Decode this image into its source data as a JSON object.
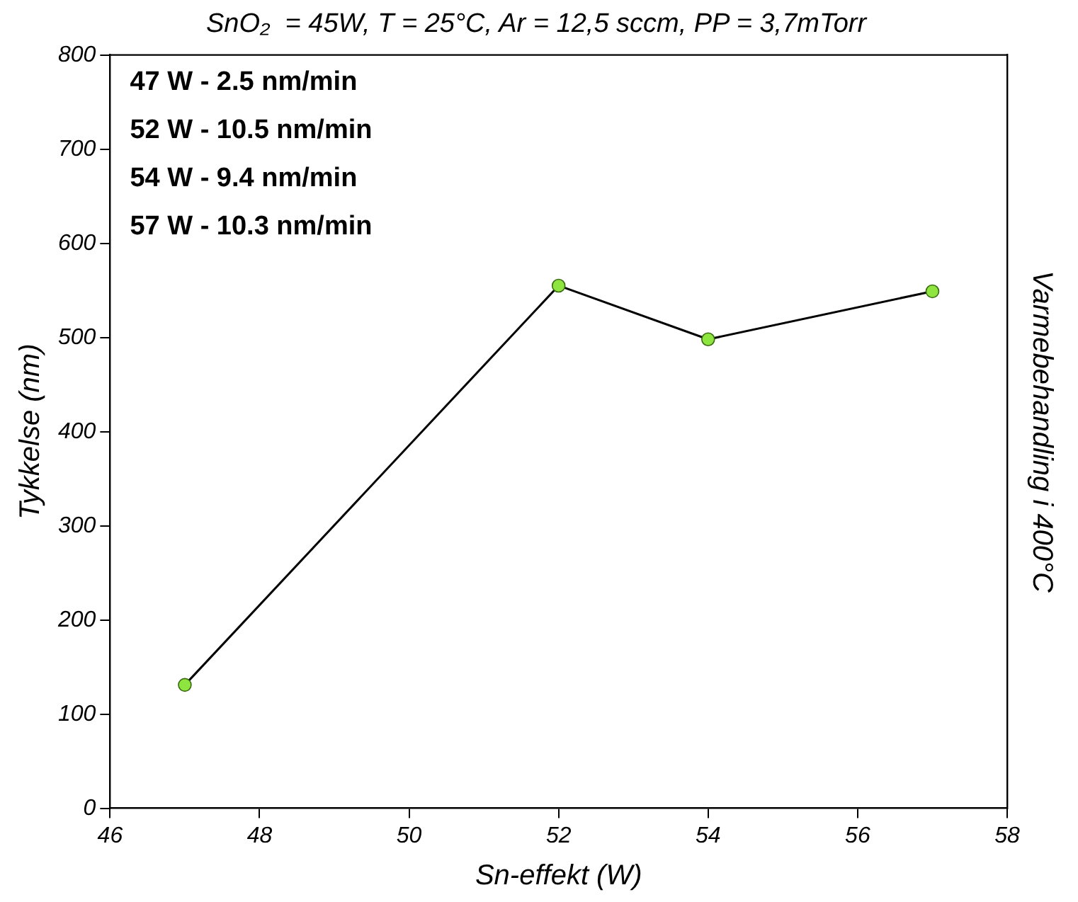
{
  "chart_data": {
    "type": "line",
    "title": "SnO₂  = 45W, T = 25°C, Ar = 12,5 sccm, PP = 3,7mTorr",
    "xlabel": "Sn-effekt (W)",
    "ylabel": "Tykkelse (nm)",
    "y2label": "Varmebehandling i 400°C",
    "annotations": [
      "47 W - 2.5 nm/min",
      "52 W - 10.5 nm/min",
      "54 W - 9.4 nm/min",
      "57 W - 10.3 nm/min"
    ],
    "x": [
      47,
      52,
      54,
      57
    ],
    "series": [
      {
        "color": "#8ee53f",
        "values": [
          131,
          555,
          498,
          549
        ]
      }
    ],
    "xlim": [
      46,
      58
    ],
    "xticks": [
      46,
      48,
      50,
      52,
      54,
      56,
      58
    ],
    "ylim": [
      0,
      800
    ],
    "yticks": [
      0,
      100,
      200,
      300,
      400,
      500,
      600,
      700,
      800
    ],
    "grid": false,
    "legend": false,
    "marker": "circle",
    "line_style": "solid"
  }
}
